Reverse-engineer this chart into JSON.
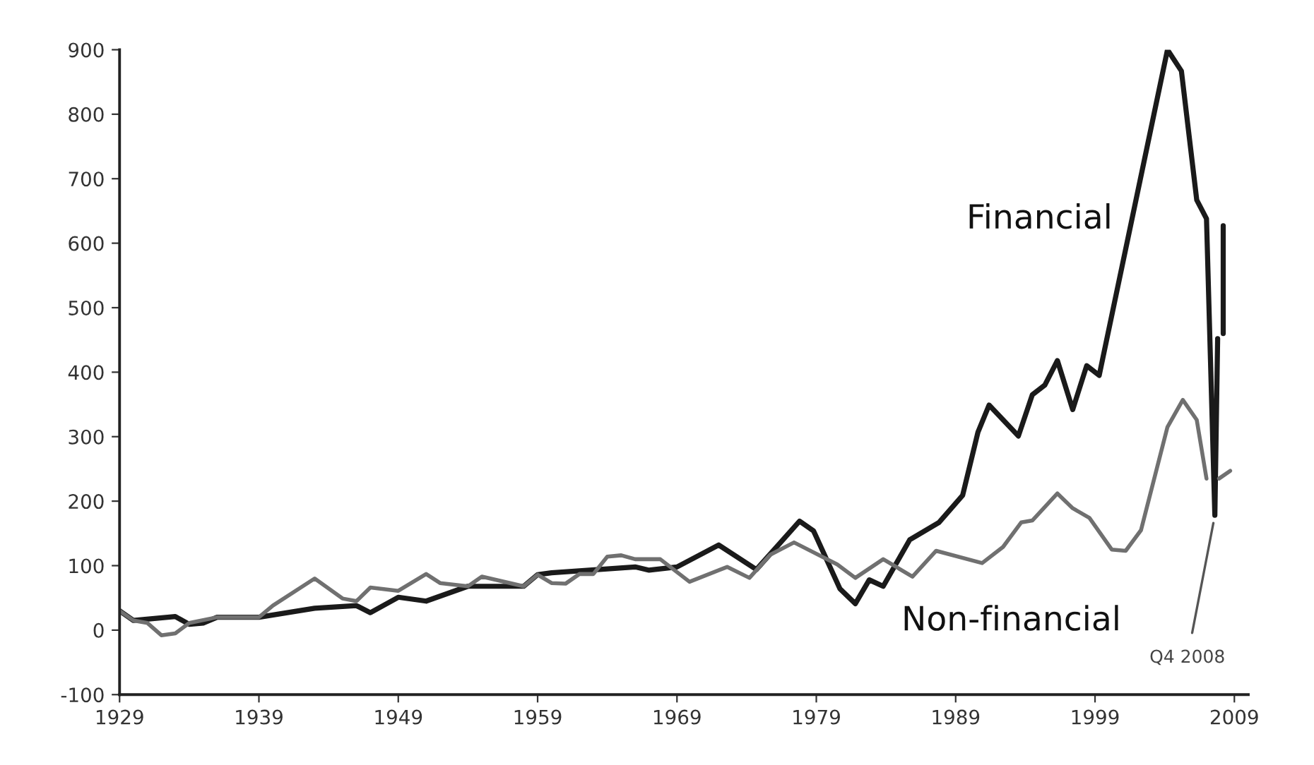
{
  "chart_data": {
    "type": "line",
    "xlim": [
      1929,
      2010
    ],
    "xticks": [
      1929,
      1939,
      1949,
      1959,
      1969,
      1979,
      1989,
      1999,
      2009
    ],
    "ylim": [
      -100,
      900
    ],
    "yticks": [
      -100,
      0,
      100,
      200,
      300,
      400,
      500,
      600,
      700,
      800,
      900
    ],
    "grid": false,
    "legend": false,
    "marker": "none",
    "line_style": "solid",
    "series": [
      {
        "name": "Financial",
        "color": "#1a1a1a",
        "x": [
          1929,
          1930,
          1933,
          1934,
          1935,
          1936,
          1939,
          1943,
          1946,
          1947,
          1949,
          1951,
          1954,
          1958,
          1959,
          1960,
          1966,
          1967,
          1969,
          1972,
          1974.7,
          1977.8,
          1978.8,
          1980.7,
          1981.8,
          1982.8,
          1983.8,
          1985.7,
          1987.8,
          1989.5,
          1990.6,
          1991.4,
          1993.5,
          1994.5,
          1995.4,
          1996.3,
          1997.4,
          1998.4,
          1999.3,
          2004.2,
          2005.2,
          2006.3,
          2007,
          2007.6,
          2007.8,
          2008,
          2008.2,
          2008.2
        ],
        "values": [
          30,
          15,
          21,
          9,
          11,
          20,
          20,
          34,
          38,
          27,
          51,
          45,
          68,
          68,
          86,
          89,
          98,
          93,
          98,
          132,
          94,
          169,
          154,
          64,
          41,
          78,
          68,
          140,
          167,
          209,
          307,
          349,
          301,
          365,
          380,
          418,
          342,
          410,
          395,
          900,
          867,
          667,
          638,
          178,
          452,
          null,
          627,
          460
        ]
      },
      {
        "name": "Non-financial",
        "color": "#707070",
        "x": [
          1929,
          1930,
          1931,
          1932,
          1933,
          1934,
          1936,
          1939,
          1940,
          1943,
          1945,
          1946,
          1947,
          1949,
          1951,
          1952,
          1954,
          1955,
          1958,
          1959,
          1960,
          1961,
          1962,
          1963,
          1964,
          1965,
          1966,
          1967.8,
          1969.9,
          1972.6,
          1974.2,
          1975.7,
          1977.4,
          1980.5,
          1981.8,
          1983.8,
          1985.9,
          1987.6,
          1990.9,
          1992.4,
          1993.7,
          1994.5,
          1996.3,
          1997.4,
          1998.6,
          2000.2,
          2001.2,
          2002.3,
          2004.2,
          2005.3,
          2006.3,
          2007,
          2007.5,
          2007.9,
          2008.7
        ],
        "values": [
          30,
          15,
          11,
          -8,
          -5,
          11,
          20,
          20,
          38,
          80,
          49,
          45,
          66,
          61,
          87,
          73,
          68,
          83,
          68,
          86,
          73,
          72,
          87,
          87,
          114,
          116,
          110,
          110,
          75,
          98,
          81,
          117,
          136,
          102,
          81,
          110,
          83,
          123,
          104,
          129,
          167,
          170,
          212,
          189,
          174,
          125,
          123,
          155,
          315,
          357,
          326,
          235,
          null,
          235,
          247
        ]
      }
    ],
    "annotations": [
      {
        "text": "Q4 2008",
        "x": 2007.6,
        "y": 178
      }
    ]
  }
}
